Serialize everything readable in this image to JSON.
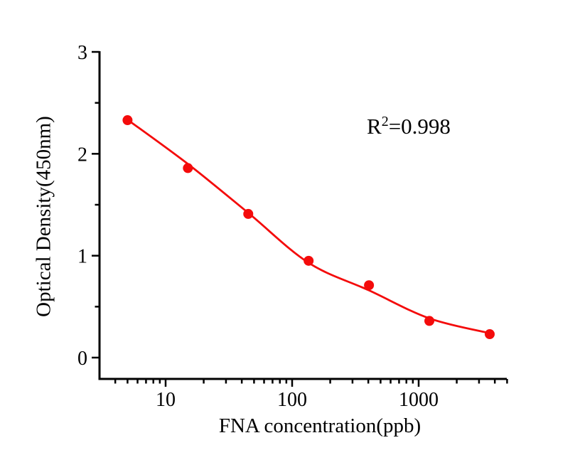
{
  "chart_data": {
    "type": "scatter",
    "title": "",
    "xlabel": "FNA concentration(ppb)",
    "ylabel": "Optical Density(450nm)",
    "annotation": {
      "base": "R",
      "sup": "2",
      "rest": "=0.998"
    },
    "x_scale": "log",
    "y_scale": "linear",
    "xlim": [
      3,
      5000
    ],
    "ylim": [
      0,
      3
    ],
    "grid": false,
    "legend": "none",
    "marker": "filled-circle",
    "series": [
      {
        "name": "standard-curve-points",
        "x": [
          5,
          15,
          45,
          135,
          405,
          1215,
          3645
        ],
        "y": [
          2.33,
          1.86,
          1.41,
          0.95,
          0.71,
          0.36,
          0.23
        ]
      }
    ],
    "fit_curve": {
      "name": "4PL-fit-line",
      "x": [
        5,
        15,
        45,
        135,
        405,
        1215,
        3645
      ],
      "y": [
        2.335,
        1.9,
        1.42,
        0.93,
        0.66,
        0.385,
        0.24
      ]
    },
    "x_major_ticks": [
      {
        "value": 10,
        "label": "10"
      },
      {
        "value": 100,
        "label": "100"
      },
      {
        "value": 1000,
        "label": "1000"
      }
    ],
    "x_minor_ticks": [
      4,
      5,
      6,
      7,
      8,
      9,
      20,
      30,
      40,
      50,
      60,
      70,
      80,
      90,
      200,
      300,
      400,
      500,
      600,
      700,
      800,
      900,
      2000,
      3000,
      4000,
      5000
    ],
    "y_major_ticks": [
      {
        "value": 0,
        "label": "0"
      },
      {
        "value": 1,
        "label": "1"
      },
      {
        "value": 2,
        "label": "2"
      },
      {
        "value": 3,
        "label": "3"
      }
    ],
    "y_minor_ticks": [
      0.5,
      1.5,
      2.5
    ],
    "colors": {
      "series": "#f40b0b",
      "axis": "#000000",
      "background": "#ffffff"
    }
  }
}
